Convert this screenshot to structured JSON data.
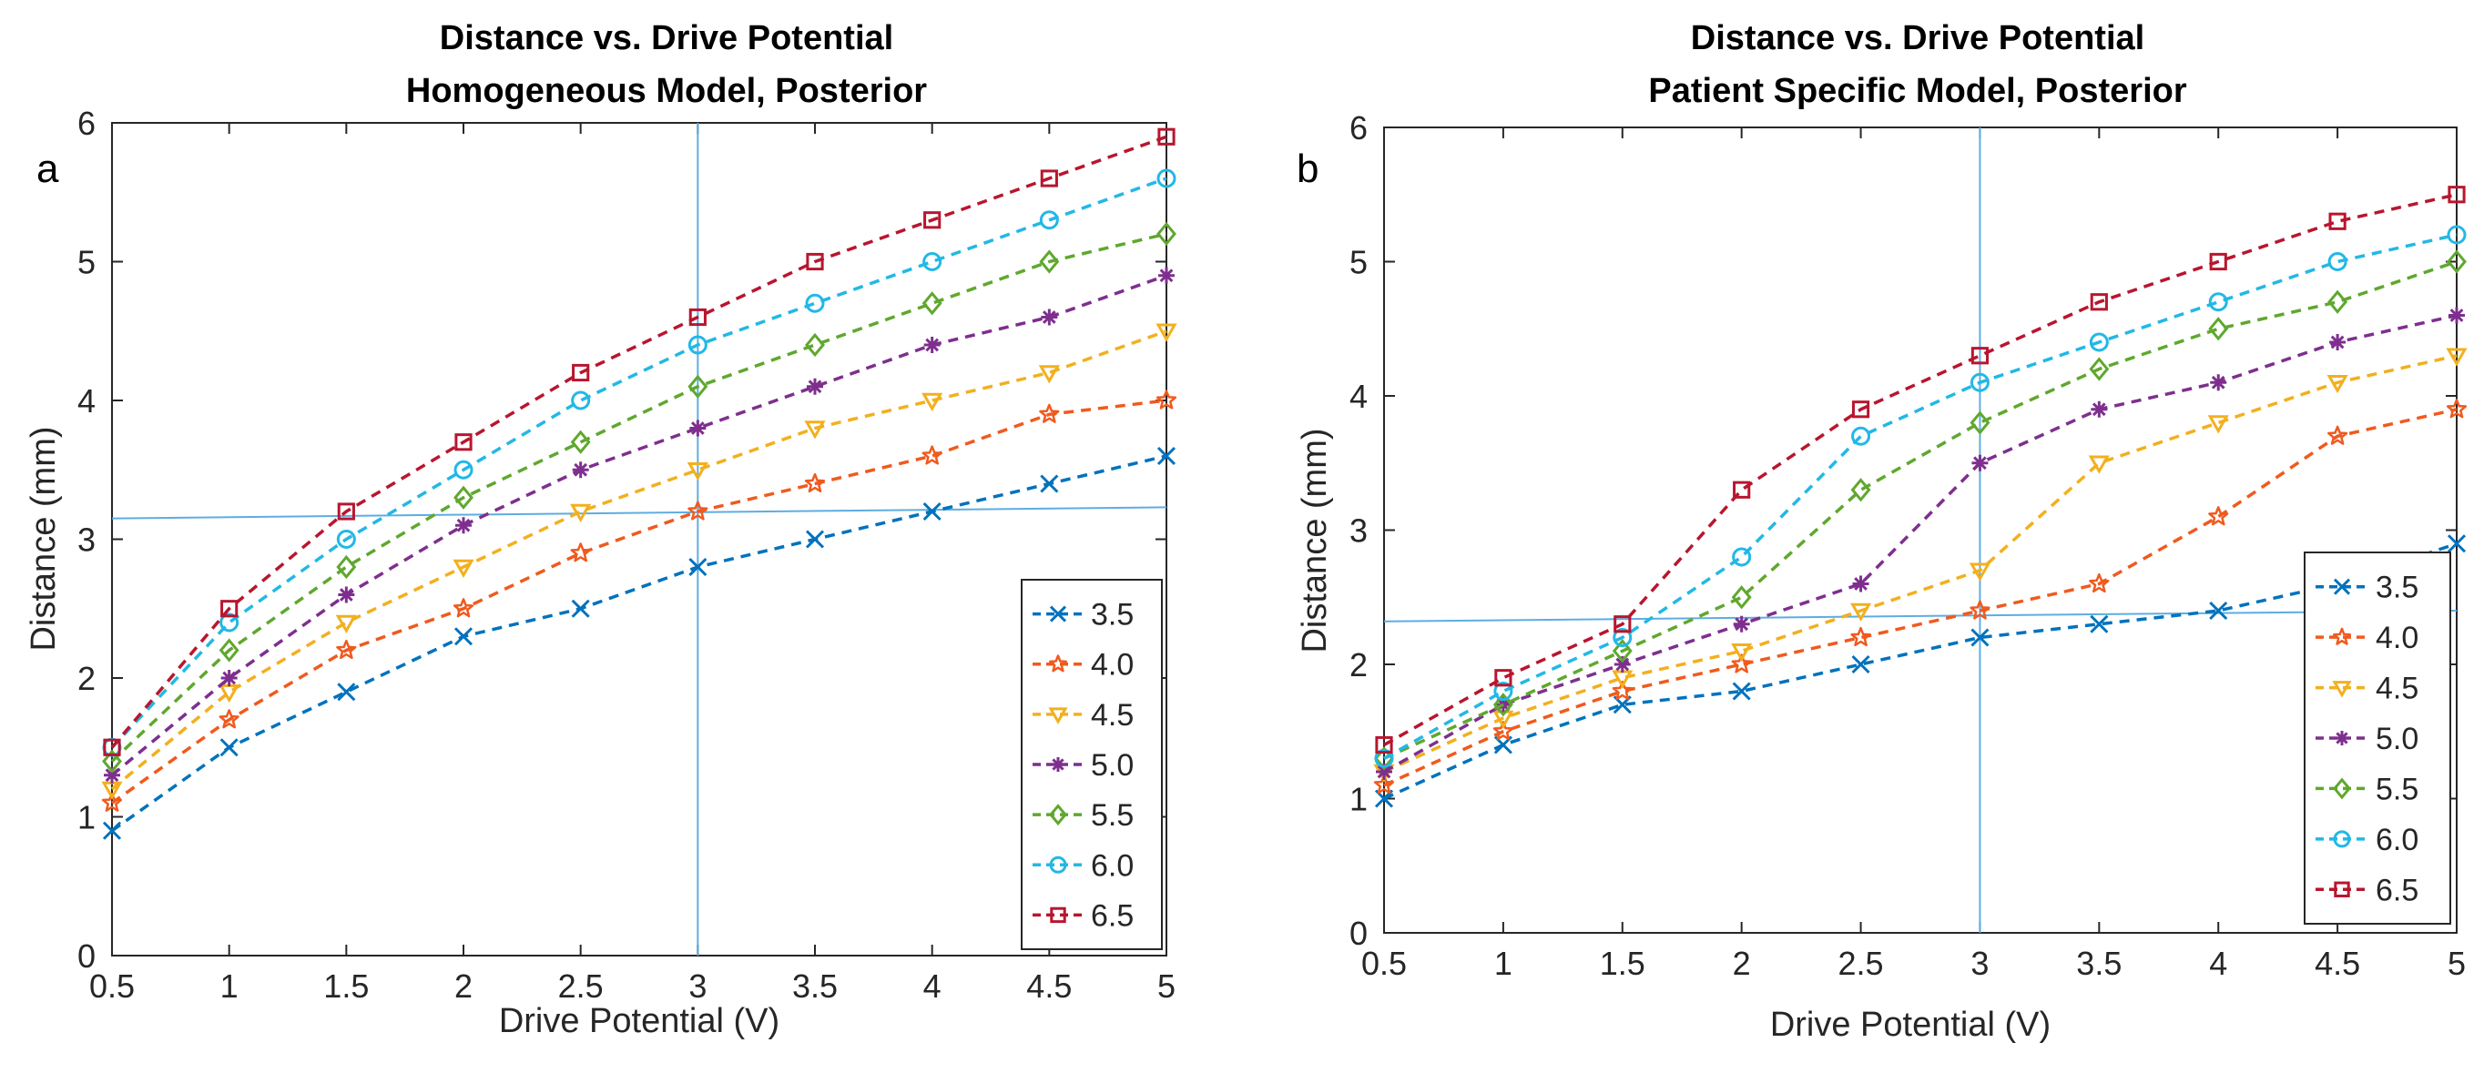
{
  "chart_data": [
    {
      "type": "line",
      "panel_label": "a",
      "title": "Distance vs. Drive Potential",
      "subtitle": "Homogeneous Model, Posterior",
      "xlabel": "Drive Potential (V)",
      "ylabel": "Distance (mm)",
      "xlim": [
        0.5,
        5
      ],
      "ylim": [
        0,
        6
      ],
      "xticks": [
        "0.5",
        "1",
        "1.5",
        "2",
        "2.5",
        "3",
        "3.5",
        "4",
        "4.5",
        "5"
      ],
      "yticks": [
        "0",
        "1",
        "2",
        "3",
        "4",
        "5",
        "6"
      ],
      "grid": false,
      "legend_position": "bottom-right",
      "x": [
        0.5,
        1,
        1.5,
        2,
        2.5,
        3,
        3.5,
        4,
        4.5,
        5
      ],
      "series": [
        {
          "name": "3.5",
          "color": "#0072BD",
          "marker": "x",
          "values": [
            0.9,
            1.5,
            1.9,
            2.3,
            2.5,
            2.8,
            3.0,
            3.2,
            3.4,
            3.6
          ]
        },
        {
          "name": "4.0",
          "color": "#F05A1E",
          "marker": "star",
          "values": [
            1.1,
            1.7,
            2.2,
            2.5,
            2.9,
            3.2,
            3.4,
            3.6,
            3.9,
            4.0
          ]
        },
        {
          "name": "4.5",
          "color": "#F2B01E",
          "marker": "triangle-down",
          "values": [
            1.2,
            1.9,
            2.4,
            2.8,
            3.2,
            3.5,
            3.8,
            4.0,
            4.2,
            4.5
          ]
        },
        {
          "name": "5.0",
          "color": "#7E2F8E",
          "marker": "asterisk",
          "values": [
            1.3,
            2.0,
            2.6,
            3.1,
            3.5,
            3.8,
            4.1,
            4.4,
            4.6,
            4.9
          ]
        },
        {
          "name": "5.5",
          "color": "#5FA82E",
          "marker": "diamond",
          "values": [
            1.4,
            2.2,
            2.8,
            3.3,
            3.7,
            4.1,
            4.4,
            4.7,
            5.0,
            5.2
          ]
        },
        {
          "name": "6.0",
          "color": "#22B8E6",
          "marker": "circle",
          "values": [
            1.5,
            2.4,
            3.0,
            3.5,
            4.0,
            4.4,
            4.7,
            5.0,
            5.3,
            5.6
          ]
        },
        {
          "name": "6.5",
          "color": "#B8162E",
          "marker": "square",
          "values": [
            1.5,
            2.5,
            3.2,
            3.7,
            4.2,
            4.6,
            5.0,
            5.3,
            5.6,
            5.9
          ]
        }
      ],
      "annotations": {
        "vertical_line_x": 3,
        "horizontal_line_y": [
          3.15,
          3.23
        ],
        "line_color": "#5DADE2"
      }
    },
    {
      "type": "line",
      "panel_label": "b",
      "title": "Distance vs. Drive Potential",
      "subtitle": "Patient Specific Model, Posterior",
      "xlabel": "Drive Potential (V)",
      "ylabel": "Distance (mm)",
      "xlim": [
        0.5,
        5
      ],
      "ylim": [
        0,
        6
      ],
      "xticks": [
        "0.5",
        "1",
        "1.5",
        "2",
        "2.5",
        "3",
        "3.5",
        "4",
        "4.5",
        "5"
      ],
      "yticks": [
        "0",
        "1",
        "2",
        "3",
        "4",
        "5",
        "6"
      ],
      "grid": false,
      "legend_position": "bottom-right",
      "x": [
        0.5,
        1,
        1.5,
        2,
        2.5,
        3,
        3.5,
        4,
        4.5,
        5
      ],
      "series": [
        {
          "name": "3.5",
          "color": "#0072BD",
          "marker": "x",
          "values": [
            1.0,
            1.4,
            1.7,
            1.8,
            2.0,
            2.2,
            2.3,
            2.4,
            2.6,
            2.9
          ]
        },
        {
          "name": "4.0",
          "color": "#F05A1E",
          "marker": "star",
          "values": [
            1.1,
            1.5,
            1.8,
            2.0,
            2.2,
            2.4,
            2.6,
            3.1,
            3.7,
            3.9
          ]
        },
        {
          "name": "4.5",
          "color": "#F2B01E",
          "marker": "triangle-down",
          "values": [
            1.2,
            1.6,
            1.9,
            2.1,
            2.4,
            2.7,
            3.5,
            3.8,
            4.1,
            4.3
          ]
        },
        {
          "name": "5.0",
          "color": "#7E2F8E",
          "marker": "asterisk",
          "values": [
            1.2,
            1.7,
            2.0,
            2.3,
            2.6,
            3.5,
            3.9,
            4.1,
            4.4,
            4.6
          ]
        },
        {
          "name": "5.5",
          "color": "#5FA82E",
          "marker": "diamond",
          "values": [
            1.3,
            1.7,
            2.1,
            2.5,
            3.3,
            3.8,
            4.2,
            4.5,
            4.7,
            5.0
          ]
        },
        {
          "name": "6.0",
          "color": "#22B8E6",
          "marker": "circle",
          "values": [
            1.3,
            1.8,
            2.2,
            2.8,
            3.7,
            4.1,
            4.4,
            4.7,
            5.0,
            5.2
          ]
        },
        {
          "name": "6.5",
          "color": "#B8162E",
          "marker": "square",
          "values": [
            1.4,
            1.9,
            2.3,
            3.3,
            3.9,
            4.3,
            4.7,
            5.0,
            5.3,
            5.5
          ]
        }
      ],
      "annotations": {
        "vertical_line_x": 3,
        "horizontal_line_y": [
          2.32,
          2.4
        ],
        "line_color": "#5DADE2"
      }
    }
  ]
}
